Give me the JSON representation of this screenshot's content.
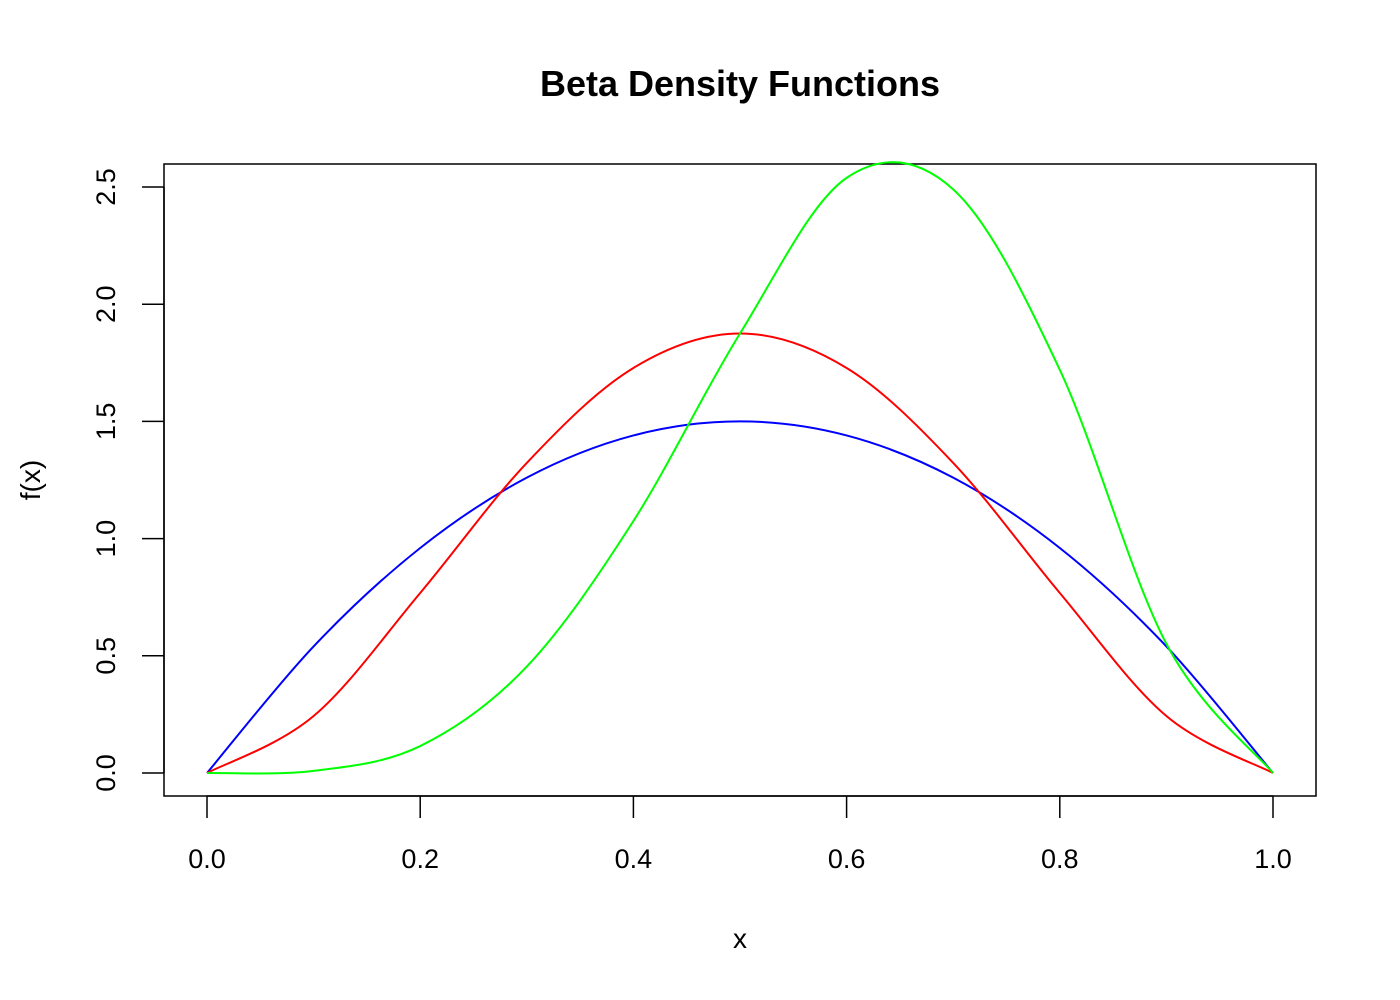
{
  "chart_data": {
    "type": "line",
    "title": "Beta Density Functions",
    "xlabel": "x",
    "ylabel": "f(x)",
    "xlim": [
      0.0,
      1.0
    ],
    "ylim": [
      0.0,
      2.5
    ],
    "x_ticks": [
      "0.0",
      "0.2",
      "0.4",
      "0.6",
      "0.8",
      "1.0"
    ],
    "y_ticks": [
      "0.0",
      "0.5",
      "1.0",
      "1.5",
      "2.0",
      "2.5"
    ],
    "grid": false,
    "legend": "none",
    "series": [
      {
        "color": "#0000ff",
        "x": [
          0.0,
          0.1,
          0.2,
          0.3,
          0.4,
          0.5,
          0.6,
          0.7,
          0.8,
          0.9,
          1.0
        ],
        "values": [
          0.0,
          0.54,
          0.96,
          1.26,
          1.44,
          1.5,
          1.44,
          1.26,
          0.96,
          0.54,
          0.0
        ]
      },
      {
        "color": "#ff0000",
        "x": [
          0.0,
          0.1,
          0.2,
          0.3,
          0.4,
          0.5,
          0.6,
          0.7,
          0.8,
          0.9,
          1.0
        ],
        "values": [
          0.0,
          0.243,
          0.768,
          1.323,
          1.728,
          1.875,
          1.728,
          1.323,
          0.768,
          0.243,
          0.0
        ]
      },
      {
        "color": "#00ff00",
        "x": [
          0.0,
          0.1,
          0.2,
          0.3,
          0.4,
          0.5,
          0.6,
          0.7,
          0.8,
          0.9,
          1.0
        ],
        "values": [
          0.0,
          0.009,
          0.115,
          0.454,
          1.075,
          1.875,
          2.539,
          2.49,
          1.72,
          0.551,
          0.0
        ]
      }
    ]
  }
}
